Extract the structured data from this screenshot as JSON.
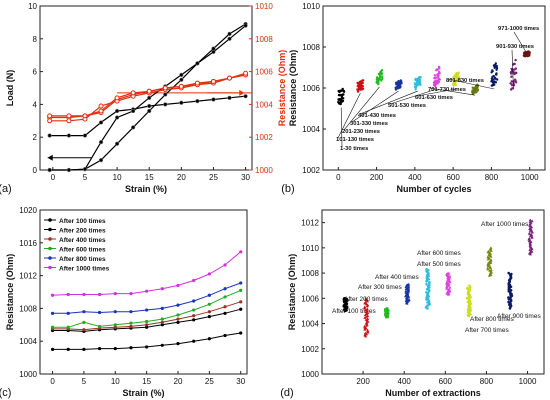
{
  "chart_data": [
    {
      "panel": "(a)",
      "type": "line",
      "xlabel": "Strain (%)",
      "ylabel": "Load (N)",
      "ylabel_right": "Resistance (Ohm)",
      "xlim": [
        -2,
        31
      ],
      "ylim": [
        0,
        10
      ],
      "ylim_right": [
        1000,
        1010
      ],
      "xticks": [
        0,
        5,
        10,
        15,
        20,
        25,
        30
      ],
      "yticks": [
        0,
        2,
        4,
        6,
        8,
        10
      ],
      "yticks_right": [
        1000,
        1002,
        1004,
        1006,
        1008,
        1010
      ],
      "series": [
        {
          "axis": "left",
          "color": "#000000",
          "x": [
            -0.5,
            2.5,
            5,
            7.5,
            10,
            12.5,
            15,
            17.5,
            20,
            22.5,
            25,
            27.5,
            30
          ],
          "y": [
            2.1,
            2.1,
            2.1,
            2.9,
            3.6,
            3.7,
            3.9,
            4.0,
            4.1,
            4.2,
            4.3,
            4.4,
            4.5
          ]
        },
        {
          "axis": "left",
          "color": "#000000",
          "x": [
            -0.5,
            2.5,
            5,
            7.5,
            10,
            12.5,
            15,
            17.5,
            20,
            22.5,
            25,
            27.5,
            30
          ],
          "y": [
            0,
            0,
            0.05,
            0.6,
            1.6,
            2.6,
            3.6,
            4.6,
            5.5,
            6.5,
            7.4,
            8.3,
            8.9
          ]
        },
        {
          "axis": "left",
          "color": "#000000",
          "x": [
            -0.5,
            2.5,
            5,
            7.5,
            10,
            12.5,
            15,
            17.5,
            20,
            22.5,
            25,
            27.5,
            30
          ],
          "y": [
            0,
            0,
            0.05,
            1.7,
            3.2,
            3.6,
            4.4,
            5.1,
            5.8,
            6.5,
            7.2,
            8.0,
            8.8
          ]
        },
        {
          "axis": "right",
          "color": "#e03010",
          "x": [
            -0.5,
            2.5,
            5,
            7.5,
            10,
            12.5,
            15,
            17.5,
            20,
            22.5,
            25,
            27.5,
            30
          ],
          "y": [
            1003.2,
            1003.2,
            1003.3,
            1003.5,
            1004.3,
            1004.6,
            1004.8,
            1005.0,
            1005.1,
            1005.2,
            1005.3,
            1005.6,
            1005.8
          ]
        },
        {
          "axis": "right",
          "color": "#e03010",
          "x": [
            -0.5,
            2.5,
            5,
            7.5,
            10,
            12.5,
            15,
            17.5,
            20,
            22.5,
            25,
            27.5,
            30
          ],
          "y": [
            1003.0,
            1003.0,
            1003.1,
            1003.9,
            1004.2,
            1004.5,
            1004.7,
            1004.9,
            1005.0,
            1005.2,
            1005.4,
            1005.6,
            1005.8
          ]
        },
        {
          "axis": "right",
          "color": "#e03010",
          "x": [
            -0.5,
            2.5,
            5,
            7.5,
            10,
            12.5,
            15,
            17.5,
            20,
            22.5,
            25,
            27.5,
            30
          ],
          "y": [
            1003.3,
            1003.3,
            1003.3,
            1003.6,
            1004.4,
            1004.7,
            1004.8,
            1005.0,
            1005.1,
            1005.3,
            1005.4,
            1005.6,
            1005.9
          ]
        }
      ],
      "reference_line_right": 1004.7
    },
    {
      "panel": "(b)",
      "type": "scatter",
      "xlabel": "Number of cycles",
      "ylabel": "Resistance (Ohm)",
      "xlim": [
        -80,
        1080
      ],
      "ylim": [
        1002,
        1010
      ],
      "xticks": [
        0,
        200,
        400,
        600,
        800,
        1000
      ],
      "yticks": [
        1002,
        1004,
        1006,
        1008,
        1010
      ],
      "groups": [
        {
          "label": "1-30 times",
          "x": [
            0,
            30
          ],
          "y": [
            1005.1,
            1006.1
          ],
          "color": "#000000"
        },
        {
          "label": "101-130 times",
          "x": [
            100,
            130
          ],
          "y": [
            1005.8,
            1006.4
          ],
          "color": "#cc1111"
        },
        {
          "label": "201-230 times",
          "x": [
            200,
            230
          ],
          "y": [
            1006.1,
            1006.9
          ],
          "color": "#22bb22"
        },
        {
          "label": "301-330 times",
          "x": [
            300,
            330
          ],
          "y": [
            1005.9,
            1006.4
          ],
          "color": "#1a3399"
        },
        {
          "label": "401-430 times",
          "x": [
            400,
            430
          ],
          "y": [
            1005.9,
            1006.6
          ],
          "color": "#33bbdd"
        },
        {
          "label": "501-530 times",
          "x": [
            500,
            530
          ],
          "y": [
            1006.0,
            1007.1
          ],
          "color": "#dd44dd"
        },
        {
          "label": "601-630 times",
          "x": [
            600,
            630
          ],
          "y": [
            1006.0,
            1006.8
          ],
          "color": "#ccdd22"
        },
        {
          "label": "701-730 times",
          "x": [
            700,
            730
          ],
          "y": [
            1005.7,
            1006.2
          ],
          "color": "#667711"
        },
        {
          "label": "801-830 times",
          "x": [
            800,
            830
          ],
          "y": [
            1006.0,
            1007.3
          ],
          "color": "#0a1a66"
        },
        {
          "label": "901-930 times",
          "x": [
            900,
            930
          ],
          "y": [
            1005.8,
            1007.5
          ],
          "color": "#772277"
        },
        {
          "label": "971-1000 times",
          "x": [
            970,
            1000
          ],
          "y": [
            1007.5,
            1007.8
          ],
          "color": "#6a1515"
        }
      ]
    },
    {
      "panel": "(c)",
      "type": "line",
      "xlabel": "Strain (%)",
      "ylabel": "Resistance (Ohm)",
      "xlim": [
        -2,
        31
      ],
      "ylim": [
        1000,
        1020
      ],
      "xticks": [
        0,
        5,
        10,
        15,
        20,
        25,
        30
      ],
      "yticks": [
        1000,
        1004,
        1008,
        1012,
        1016,
        1020
      ],
      "legend_position": "top-left",
      "x": [
        0,
        2.5,
        5,
        7.5,
        10,
        12.5,
        15,
        17.5,
        20,
        22.5,
        25,
        27.5,
        30
      ],
      "series": [
        {
          "name": "After 100 times",
          "color": "#000000",
          "values": [
            1005.3,
            1005.3,
            1005.2,
            1005.4,
            1005.5,
            1005.6,
            1005.7,
            1006.0,
            1006.3,
            1006.6,
            1007.0,
            1007.4,
            1007.9
          ]
        },
        {
          "name": "After 200 times",
          "color": "#000000",
          "values": [
            1003.0,
            1003.0,
            1003.0,
            1003.1,
            1003.1,
            1003.2,
            1003.3,
            1003.5,
            1003.7,
            1004.0,
            1004.3,
            1004.7,
            1005.0
          ]
        },
        {
          "name": "After 400 times",
          "color": "#993322",
          "values": [
            1005.5,
            1005.5,
            1005.4,
            1005.6,
            1005.7,
            1005.8,
            1006.0,
            1006.3,
            1006.7,
            1007.1,
            1007.6,
            1008.2,
            1008.8
          ]
        },
        {
          "name": "After 600 times",
          "color": "#22aa22",
          "values": [
            1005.7,
            1005.7,
            1006.3,
            1005.8,
            1006.0,
            1006.2,
            1006.4,
            1006.7,
            1007.2,
            1007.8,
            1008.5,
            1009.4,
            1010.2
          ]
        },
        {
          "name": "After 800 times",
          "color": "#1a33bb",
          "values": [
            1007.4,
            1007.4,
            1007.6,
            1007.5,
            1007.6,
            1007.6,
            1007.8,
            1008.0,
            1008.4,
            1008.9,
            1009.6,
            1010.4,
            1011.1
          ]
        },
        {
          "name": "After 1000 times",
          "color": "#cc33dd",
          "values": [
            1009.6,
            1009.7,
            1009.7,
            1009.7,
            1009.8,
            1009.8,
            1010.1,
            1010.4,
            1010.8,
            1011.4,
            1012.2,
            1013.3,
            1014.9
          ]
        }
      ]
    },
    {
      "panel": "(d)",
      "type": "scatter",
      "xlabel": "Number of extractions",
      "ylabel": "Resistance (Ohm)",
      "xlim": [
        0,
        1080
      ],
      "ylim": [
        1000,
        1013
      ],
      "xticks": [
        200,
        400,
        600,
        800,
        1000
      ],
      "yticks": [
        1000,
        1002,
        1004,
        1006,
        1008,
        1010,
        1012
      ],
      "groups": [
        {
          "label": "After 100 times",
          "x": [
            100,
            130
          ],
          "y": [
            1005.0,
            1006.0
          ],
          "color": "#000000"
        },
        {
          "label": "After 200 times",
          "x": [
            200,
            230
          ],
          "y": [
            1003.0,
            1006.0
          ],
          "color": "#cc1111"
        },
        {
          "label": "After 300 times",
          "x": [
            300,
            330
          ],
          "y": [
            1004.5,
            1005.2
          ],
          "color": "#22bb22"
        },
        {
          "label": "After 400 times",
          "x": [
            400,
            430
          ],
          "y": [
            1005.6,
            1007.1
          ],
          "color": "#1a33aa"
        },
        {
          "label": "After 500 times",
          "x": [
            500,
            530
          ],
          "y": [
            1005.2,
            1008.3
          ],
          "color": "#33bbdd"
        },
        {
          "label": "After 600 times",
          "x": [
            600,
            630
          ],
          "y": [
            1006.3,
            1008.0
          ],
          "color": "#dd44dd"
        },
        {
          "label": "After 700 times",
          "x": [
            700,
            730
          ],
          "y": [
            1004.6,
            1007.0
          ],
          "color": "#ccdd22"
        },
        {
          "label": "After 800 times",
          "x": [
            800,
            830
          ],
          "y": [
            1007.8,
            1010.0
          ],
          "color": "#778811"
        },
        {
          "label": "After 900 times",
          "x": [
            900,
            930
          ],
          "y": [
            1005.2,
            1008.0
          ],
          "color": "#0a1a66"
        },
        {
          "label": "After 1000 times",
          "x": [
            1000,
            1030
          ],
          "y": [
            1009.5,
            1012.2
          ],
          "color": "#772277"
        }
      ]
    }
  ]
}
